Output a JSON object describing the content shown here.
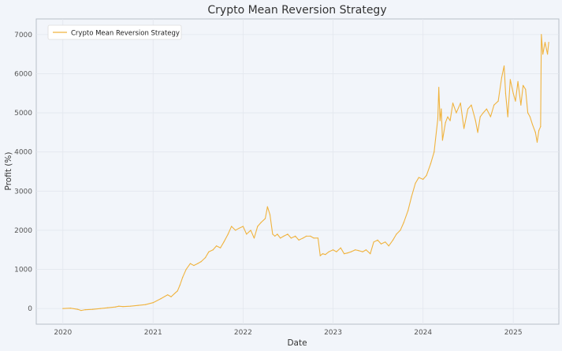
{
  "chart_data": {
    "type": "line",
    "title": "Crypto Mean Reversion Strategy",
    "xlabel": "Date",
    "ylabel": "Profit (%)",
    "xlim": [
      "2019-09-15",
      "2025-07-05"
    ],
    "ylim": [
      -400,
      7400
    ],
    "grid": true,
    "legend_position": "top-left",
    "colors": {
      "line": "#f0b33e",
      "background": "#f2f5fa",
      "axis": "#b8bec8",
      "grid": "#e3e7ee"
    },
    "x_ticks": [
      {
        "label": "2020",
        "date": "2020-01-01"
      },
      {
        "label": "2021",
        "date": "2021-01-01"
      },
      {
        "label": "2022",
        "date": "2022-01-01"
      },
      {
        "label": "2023",
        "date": "2023-01-01"
      },
      {
        "label": "2024",
        "date": "2024-01-01"
      },
      {
        "label": "2025",
        "date": "2025-01-01"
      }
    ],
    "y_ticks": [
      0,
      1000,
      2000,
      3000,
      4000,
      5000,
      6000,
      7000
    ],
    "series": [
      {
        "name": "Crypto Mean Reversion Strategy",
        "color": "#f0b33e",
        "x": [
          "2020-01-01",
          "2020-02-01",
          "2020-03-01",
          "2020-03-15",
          "2020-04-01",
          "2020-05-01",
          "2020-06-01",
          "2020-07-01",
          "2020-08-01",
          "2020-08-15",
          "2020-09-01",
          "2020-10-01",
          "2020-11-01",
          "2020-12-01",
          "2021-01-01",
          "2021-02-01",
          "2021-03-01",
          "2021-03-15",
          "2021-04-01",
          "2021-04-10",
          "2021-04-20",
          "2021-05-01",
          "2021-05-15",
          "2021-06-01",
          "2021-06-15",
          "2021-07-01",
          "2021-07-15",
          "2021-08-01",
          "2021-08-15",
          "2021-09-01",
          "2021-09-15",
          "2021-10-01",
          "2021-10-15",
          "2021-11-01",
          "2021-11-15",
          "2021-12-01",
          "2021-12-15",
          "2022-01-01",
          "2022-01-15",
          "2022-02-01",
          "2022-02-15",
          "2022-03-01",
          "2022-03-15",
          "2022-04-01",
          "2022-04-10",
          "2022-04-20",
          "2022-05-01",
          "2022-05-10",
          "2022-05-20",
          "2022-06-01",
          "2022-06-15",
          "2022-07-01",
          "2022-07-15",
          "2022-08-01",
          "2022-08-15",
          "2022-09-01",
          "2022-09-15",
          "2022-10-01",
          "2022-10-15",
          "2022-11-01",
          "2022-11-10",
          "2022-11-20",
          "2022-12-01",
          "2022-12-15",
          "2023-01-01",
          "2023-01-15",
          "2023-02-01",
          "2023-02-15",
          "2023-03-01",
          "2023-03-15",
          "2023-04-01",
          "2023-04-15",
          "2023-05-01",
          "2023-05-15",
          "2023-06-01",
          "2023-06-15",
          "2023-07-01",
          "2023-07-15",
          "2023-08-01",
          "2023-08-15",
          "2023-09-01",
          "2023-09-15",
          "2023-10-01",
          "2023-10-15",
          "2023-11-01",
          "2023-11-15",
          "2023-12-01",
          "2023-12-15",
          "2024-01-01",
          "2024-01-15",
          "2024-02-01",
          "2024-02-15",
          "2024-03-01",
          "2024-03-05",
          "2024-03-10",
          "2024-03-15",
          "2024-03-20",
          "2024-04-01",
          "2024-04-10",
          "2024-04-20",
          "2024-05-01",
          "2024-05-15",
          "2024-06-01",
          "2024-06-15",
          "2024-07-01",
          "2024-07-15",
          "2024-08-01",
          "2024-08-10",
          "2024-08-20",
          "2024-09-01",
          "2024-09-15",
          "2024-10-01",
          "2024-10-15",
          "2024-11-01",
          "2024-11-15",
          "2024-11-25",
          "2024-12-01",
          "2024-12-10",
          "2024-12-20",
          "2025-01-01",
          "2025-01-10",
          "2025-01-20",
          "2025-02-01",
          "2025-02-10",
          "2025-02-20",
          "2025-03-01",
          "2025-03-10",
          "2025-03-20",
          "2025-04-01",
          "2025-04-08",
          "2025-04-15",
          "2025-04-22",
          "2025-04-25",
          "2025-05-01",
          "2025-05-10",
          "2025-05-20",
          "2025-05-25"
        ],
        "values": [
          0,
          10,
          -20,
          -50,
          -30,
          -20,
          0,
          20,
          40,
          60,
          50,
          60,
          80,
          100,
          150,
          250,
          350,
          300,
          400,
          450,
          600,
          800,
          1000,
          1150,
          1100,
          1150,
          1200,
          1300,
          1450,
          1500,
          1600,
          1550,
          1700,
          1900,
          2100,
          2000,
          2050,
          2100,
          1900,
          2000,
          1800,
          2100,
          2200,
          2300,
          2600,
          2400,
          1900,
          1850,
          1900,
          1800,
          1850,
          1900,
          1800,
          1850,
          1750,
          1800,
          1850,
          1850,
          1800,
          1800,
          1350,
          1400,
          1380,
          1450,
          1500,
          1450,
          1550,
          1400,
          1420,
          1450,
          1500,
          1480,
          1450,
          1500,
          1400,
          1700,
          1750,
          1650,
          1700,
          1600,
          1750,
          1900,
          2000,
          2200,
          2500,
          2850,
          3200,
          3350,
          3300,
          3400,
          3700,
          4000,
          4850,
          5650,
          4800,
          5100,
          4300,
          4750,
          4900,
          4800,
          5250,
          5000,
          5250,
          4600,
          5100,
          5200,
          4800,
          4500,
          4900,
          5000,
          5100,
          4900,
          5200,
          5300,
          5900,
          6200,
          5500,
          4900,
          5850,
          5500,
          5300,
          5800,
          5200,
          5700,
          5600,
          5000,
          4900,
          4700,
          4500,
          4250,
          4550,
          4650,
          7000,
          6500,
          6800,
          6500,
          6800
        ]
      }
    ]
  }
}
